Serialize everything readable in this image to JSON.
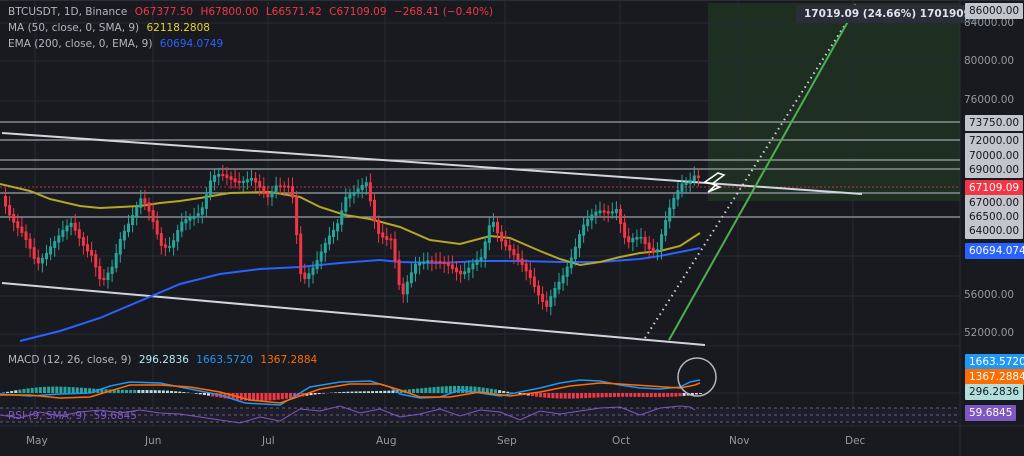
{
  "header": {
    "symbol": "BTCUSDT, 1D, Binance",
    "open": "O67377.50",
    "high": "H67800.00",
    "low": "L66571.42",
    "close": "C67109.09",
    "change": "−268.41 (−0.40%)"
  },
  "indicators": {
    "ma": {
      "label": "MA (50, close, 0, SMA, 9)",
      "value": "62118.2808",
      "color": "#e6d12b"
    },
    "ema": {
      "label": "EMA (200, close, 0, EMA, 9)",
      "value": "60694.0749",
      "color": "#2962ff"
    },
    "macd": {
      "label": "MACD (12, 26, close, 9)",
      "hist": "296.2836",
      "macd": "1663.5720",
      "signal": "1367.2884"
    },
    "rsi": {
      "label": "RSI (9, SMA, 9)",
      "value": "59.6845"
    }
  },
  "ruler": {
    "text": "17019.09 (24.66%) 1701909"
  },
  "price_axis": {
    "labels": [
      "84000.00",
      "80000.00",
      "76000.00",
      "56000.00",
      "52000.00"
    ],
    "tags": [
      "86000.00",
      "73750.00",
      "72000.00",
      "70000.00",
      "69000.00",
      "67000.00",
      "66500.00",
      "64000.00"
    ],
    "last_price": "67109.09",
    "ema_tag": "60694.0749",
    "macd_tag": "1663.5720",
    "signal_tag": "1367.2884",
    "hist_tag": "296.2836",
    "rsi_tag": "59.6845"
  },
  "time_axis": {
    "labels": [
      "May",
      "Jun",
      "Jul",
      "Aug",
      "Sep",
      "Oct",
      "Nov",
      "Dec"
    ]
  },
  "colors": {
    "up": "#26a69a",
    "down": "#f23645",
    "bg": "#181a20",
    "grid": "#262a33",
    "target_zone": "#1e2f22",
    "projection": "#4caf50"
  }
}
